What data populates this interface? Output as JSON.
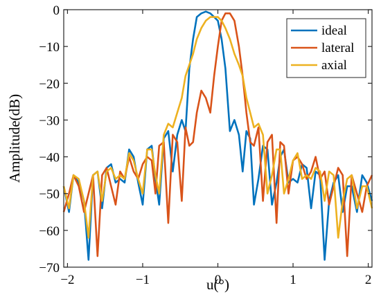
{
  "chart_data": {
    "type": "line",
    "title": "",
    "xlabel": "u(°)",
    "ylabel": "Amplitude(dB)",
    "xlim": [
      -2.05,
      2.05
    ],
    "ylim": [
      -70,
      0
    ],
    "xticks": [
      -2,
      -1,
      0,
      1,
      2
    ],
    "xtick_labels": [
      "−2",
      "−1",
      "0",
      "1",
      "2"
    ],
    "yticks": [
      0,
      -10,
      -20,
      -30,
      -40,
      -50,
      -60,
      -70
    ],
    "ytick_labels": [
      "0",
      "−10",
      "−20",
      "−30",
      "−40",
      "−50",
      "−60",
      "−70"
    ],
    "grid": false,
    "legend_position": "top-right",
    "series": [
      {
        "name": "ideal",
        "color": "#0072BD",
        "x": [
          -2.05,
          -1.98,
          -1.92,
          -1.85,
          -1.78,
          -1.72,
          -1.66,
          -1.6,
          -1.54,
          -1.48,
          -1.42,
          -1.36,
          -1.3,
          -1.24,
          -1.18,
          -1.12,
          -1.06,
          -1.0,
          -0.94,
          -0.88,
          -0.83,
          -0.78,
          -0.72,
          -0.66,
          -0.6,
          -0.54,
          -0.48,
          -0.43,
          -0.38,
          -0.33,
          -0.28,
          -0.22,
          -0.16,
          -0.1,
          -0.05,
          0.0,
          0.05,
          0.1,
          0.16,
          0.22,
          0.28,
          0.33,
          0.38,
          0.43,
          0.48,
          0.54,
          0.6,
          0.66,
          0.72,
          0.78,
          0.83,
          0.88,
          0.94,
          1.0,
          1.06,
          1.12,
          1.18,
          1.24,
          1.3,
          1.36,
          1.42,
          1.48,
          1.54,
          1.6,
          1.66,
          1.72,
          1.78,
          1.85,
          1.92,
          1.98,
          2.05
        ],
        "y": [
          -48,
          -55,
          -45,
          -47,
          -52,
          -68,
          -45,
          -44,
          -54,
          -43,
          -42,
          -47,
          -46,
          -47,
          -38,
          -40,
          -47,
          -53,
          -38,
          -37,
          -46,
          -53,
          -35,
          -33,
          -44,
          -34,
          -30,
          -33,
          -16,
          -8,
          -2,
          -1,
          -0.5,
          -1,
          -2,
          -3,
          -8,
          -16,
          -33,
          -30,
          -34,
          -44,
          -33,
          -35,
          -53,
          -46,
          -37,
          -38,
          -53,
          -47,
          -40,
          -38,
          -47,
          -46,
          -47,
          -42,
          -43,
          -54,
          -44,
          -45,
          -68,
          -52,
          -47,
          -45,
          -55,
          -48,
          -48,
          -55,
          -45,
          -47,
          -52
        ]
      },
      {
        "name": "lateral",
        "color": "#D95319",
        "x": [
          -2.05,
          -1.98,
          -1.92,
          -1.85,
          -1.78,
          -1.72,
          -1.66,
          -1.6,
          -1.54,
          -1.48,
          -1.42,
          -1.36,
          -1.3,
          -1.24,
          -1.18,
          -1.12,
          -1.06,
          -1.0,
          -0.94,
          -0.88,
          -0.83,
          -0.78,
          -0.72,
          -0.66,
          -0.6,
          -0.54,
          -0.48,
          -0.43,
          -0.38,
          -0.33,
          -0.28,
          -0.22,
          -0.16,
          -0.1,
          -0.05,
          0.0,
          0.05,
          0.1,
          0.16,
          0.22,
          0.28,
          0.33,
          0.38,
          0.43,
          0.48,
          0.54,
          0.6,
          0.66,
          0.72,
          0.78,
          0.83,
          0.88,
          0.94,
          1.0,
          1.06,
          1.12,
          1.18,
          1.24,
          1.3,
          1.36,
          1.42,
          1.48,
          1.54,
          1.6,
          1.66,
          1.72,
          1.78,
          1.85,
          1.92,
          1.98,
          2.05
        ],
        "y": [
          -55,
          -50,
          -45,
          -48,
          -55,
          -50,
          -45,
          -67,
          -45,
          -43,
          -48,
          -53,
          -44,
          -46,
          -40,
          -44,
          -46,
          -42,
          -40,
          -41,
          -50,
          -37,
          -36,
          -58,
          -34,
          -36,
          -52,
          -32,
          -37,
          -36,
          -28,
          -22,
          -24,
          -28,
          -18,
          -10,
          -3,
          -1,
          -1,
          -3,
          -10,
          -18,
          -28,
          -36,
          -37,
          -32,
          -52,
          -36,
          -34,
          -58,
          -36,
          -37,
          -50,
          -41,
          -40,
          -42,
          -46,
          -44,
          -40,
          -46,
          -44,
          -53,
          -48,
          -43,
          -45,
          -67,
          -45,
          -50,
          -55,
          -48,
          -45
        ]
      },
      {
        "name": "axial",
        "color": "#EDB120",
        "x": [
          -2.05,
          -1.98,
          -1.92,
          -1.85,
          -1.78,
          -1.72,
          -1.66,
          -1.6,
          -1.54,
          -1.48,
          -1.42,
          -1.36,
          -1.3,
          -1.24,
          -1.18,
          -1.12,
          -1.06,
          -1.0,
          -0.94,
          -0.88,
          -0.83,
          -0.78,
          -0.72,
          -0.66,
          -0.6,
          -0.54,
          -0.48,
          -0.43,
          -0.38,
          -0.33,
          -0.28,
          -0.22,
          -0.16,
          -0.1,
          -0.05,
          0.0,
          0.05,
          0.1,
          0.16,
          0.22,
          0.28,
          0.33,
          0.38,
          0.43,
          0.48,
          0.54,
          0.6,
          0.66,
          0.72,
          0.78,
          0.83,
          0.88,
          0.94,
          1.0,
          1.06,
          1.12,
          1.18,
          1.24,
          1.3,
          1.36,
          1.42,
          1.48,
          1.54,
          1.6,
          1.66,
          1.72,
          1.78,
          1.85,
          1.92,
          1.98,
          2.05
        ],
        "y": [
          -48,
          -54,
          -45,
          -46,
          -52,
          -62,
          -45,
          -44,
          -52,
          -44,
          -43,
          -46,
          -45,
          -46,
          -39,
          -41,
          -46,
          -50,
          -38,
          -38,
          -45,
          -50,
          -34,
          -31,
          -32,
          -28,
          -24,
          -18,
          -15,
          -12,
          -8,
          -5,
          -3,
          -2,
          -2,
          -2,
          -3,
          -5,
          -8,
          -12,
          -15,
          -18,
          -24,
          -28,
          -32,
          -31,
          -34,
          -50,
          -45,
          -38,
          -38,
          -50,
          -46,
          -41,
          -39,
          -46,
          -45,
          -46,
          -43,
          -44,
          -52,
          -44,
          -45,
          -62,
          -52,
          -46,
          -45,
          -54,
          -48,
          -48,
          -54
        ]
      }
    ]
  }
}
